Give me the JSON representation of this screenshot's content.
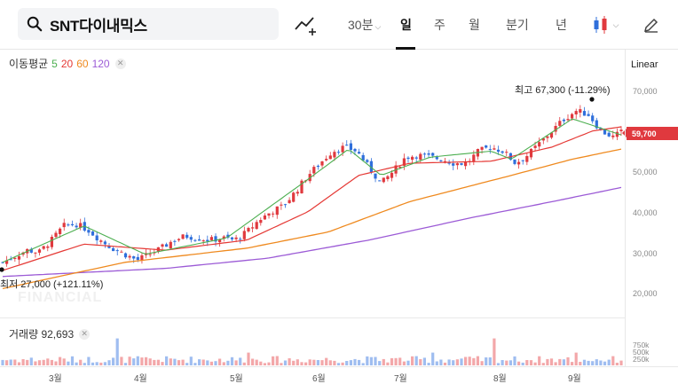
{
  "search": {
    "text": "SNT다이내믹스"
  },
  "toolbar": {
    "periods": [
      {
        "label": "30분",
        "active": false
      },
      {
        "label": "일",
        "active": true
      },
      {
        "label": "주",
        "active": false
      },
      {
        "label": "월",
        "active": false
      },
      {
        "label": "분기",
        "active": false
      },
      {
        "label": "년",
        "active": false
      }
    ],
    "icons": [
      "indicator-add-icon",
      "candle-type-icon",
      "pencil-icon"
    ]
  },
  "legend": {
    "title": "이동평균",
    "ma": [
      {
        "label": "5",
        "color": "#4caf50"
      },
      {
        "label": "20",
        "color": "#e53935"
      },
      {
        "label": "60",
        "color": "#ef8a1f"
      },
      {
        "label": "120",
        "color": "#9c5bd6"
      }
    ]
  },
  "scale_label": "Linear",
  "y_ticks": [
    "70,000",
    "60,000",
    "50,000",
    "40,000",
    "30,000",
    "20,000"
  ],
  "current_price": "59,700",
  "annotations": {
    "high": "최고 67,300 (-11.29%)",
    "low": "최저 27,000 (+121.11%)"
  },
  "watermark": "FINANCIAL",
  "volume": {
    "label": "거래량 92,693",
    "ticks": [
      "750k",
      "500k",
      "250k"
    ]
  },
  "x_ticks": [
    "3월",
    "4월",
    "5월",
    "6월",
    "7월",
    "8월",
    "9월"
  ],
  "colors": {
    "up": "#e0393e",
    "down": "#2f6fdb",
    "accent": "#e0393e"
  },
  "chart_data": {
    "type": "candlestick",
    "title": "",
    "xlabel": "",
    "ylabel": "",
    "ylim": [
      15000,
      75000
    ],
    "x_months": [
      "3월",
      "4월",
      "5월",
      "6월",
      "7월",
      "8월",
      "9월"
    ],
    "close_path": [
      [
        0,
        27500
      ],
      [
        6,
        29000
      ],
      [
        12,
        30500
      ],
      [
        18,
        30000
      ],
      [
        24,
        33000
      ],
      [
        30,
        36500
      ],
      [
        36,
        37000
      ],
      [
        42,
        35500
      ],
      [
        48,
        33000
      ],
      [
        54,
        31000
      ],
      [
        60,
        29500
      ],
      [
        66,
        28000
      ],
      [
        72,
        29500
      ],
      [
        78,
        31000
      ],
      [
        84,
        33000
      ],
      [
        90,
        34000
      ],
      [
        96,
        33500
      ],
      [
        102,
        33000
      ],
      [
        108,
        33500
      ],
      [
        114,
        33000
      ],
      [
        120,
        35000
      ],
      [
        126,
        38000
      ],
      [
        132,
        40000
      ],
      [
        138,
        41500
      ],
      [
        144,
        45000
      ],
      [
        150,
        49000
      ],
      [
        156,
        52000
      ],
      [
        162,
        55000
      ],
      [
        168,
        56000
      ],
      [
        174,
        55000
      ],
      [
        180,
        51000
      ],
      [
        186,
        47000
      ],
      [
        192,
        50000
      ],
      [
        198,
        53500
      ],
      [
        204,
        54000
      ],
      [
        210,
        53500
      ],
      [
        216,
        53000
      ],
      [
        222,
        52000
      ],
      [
        228,
        52000
      ],
      [
        234,
        55000
      ],
      [
        240,
        56000
      ],
      [
        246,
        55000
      ],
      [
        252,
        52000
      ],
      [
        258,
        54000
      ],
      [
        264,
        57000
      ],
      [
        270,
        60000
      ],
      [
        276,
        63000
      ],
      [
        282,
        65000
      ],
      [
        288,
        64000
      ],
      [
        294,
        60000
      ],
      [
        300,
        58500
      ],
      [
        304,
        59700
      ]
    ],
    "ma5_path": [
      [
        0,
        27500
      ],
      [
        40,
        36500
      ],
      [
        70,
        29500
      ],
      [
        110,
        33500
      ],
      [
        150,
        48000
      ],
      [
        170,
        55500
      ],
      [
        186,
        49000
      ],
      [
        210,
        53500
      ],
      [
        240,
        55000
      ],
      [
        250,
        53000
      ],
      [
        280,
        63000
      ],
      [
        304,
        59000
      ]
    ],
    "ma20_path": [
      [
        0,
        25500
      ],
      [
        40,
        32000
      ],
      [
        80,
        30500
      ],
      [
        120,
        33000
      ],
      [
        150,
        40000
      ],
      [
        175,
        49000
      ],
      [
        200,
        52000
      ],
      [
        240,
        52500
      ],
      [
        270,
        56000
      ],
      [
        290,
        60000
      ],
      [
        304,
        61000
      ]
    ],
    "ma60_path": [
      [
        0,
        21000
      ],
      [
        60,
        27500
      ],
      [
        120,
        31000
      ],
      [
        160,
        35000
      ],
      [
        200,
        42500
      ],
      [
        250,
        49000
      ],
      [
        280,
        53000
      ],
      [
        304,
        55500
      ]
    ],
    "ma120_path": [
      [
        0,
        24000
      ],
      [
        80,
        26000
      ],
      [
        130,
        28500
      ],
      [
        180,
        33000
      ],
      [
        230,
        38500
      ],
      [
        270,
        42500
      ],
      [
        304,
        46000
      ]
    ],
    "high": {
      "value": 67300,
      "change_pct": -11.29
    },
    "low": {
      "value": 27000,
      "change_pct": 121.11
    },
    "last_close": 59700,
    "volume_max_label": "750k"
  }
}
